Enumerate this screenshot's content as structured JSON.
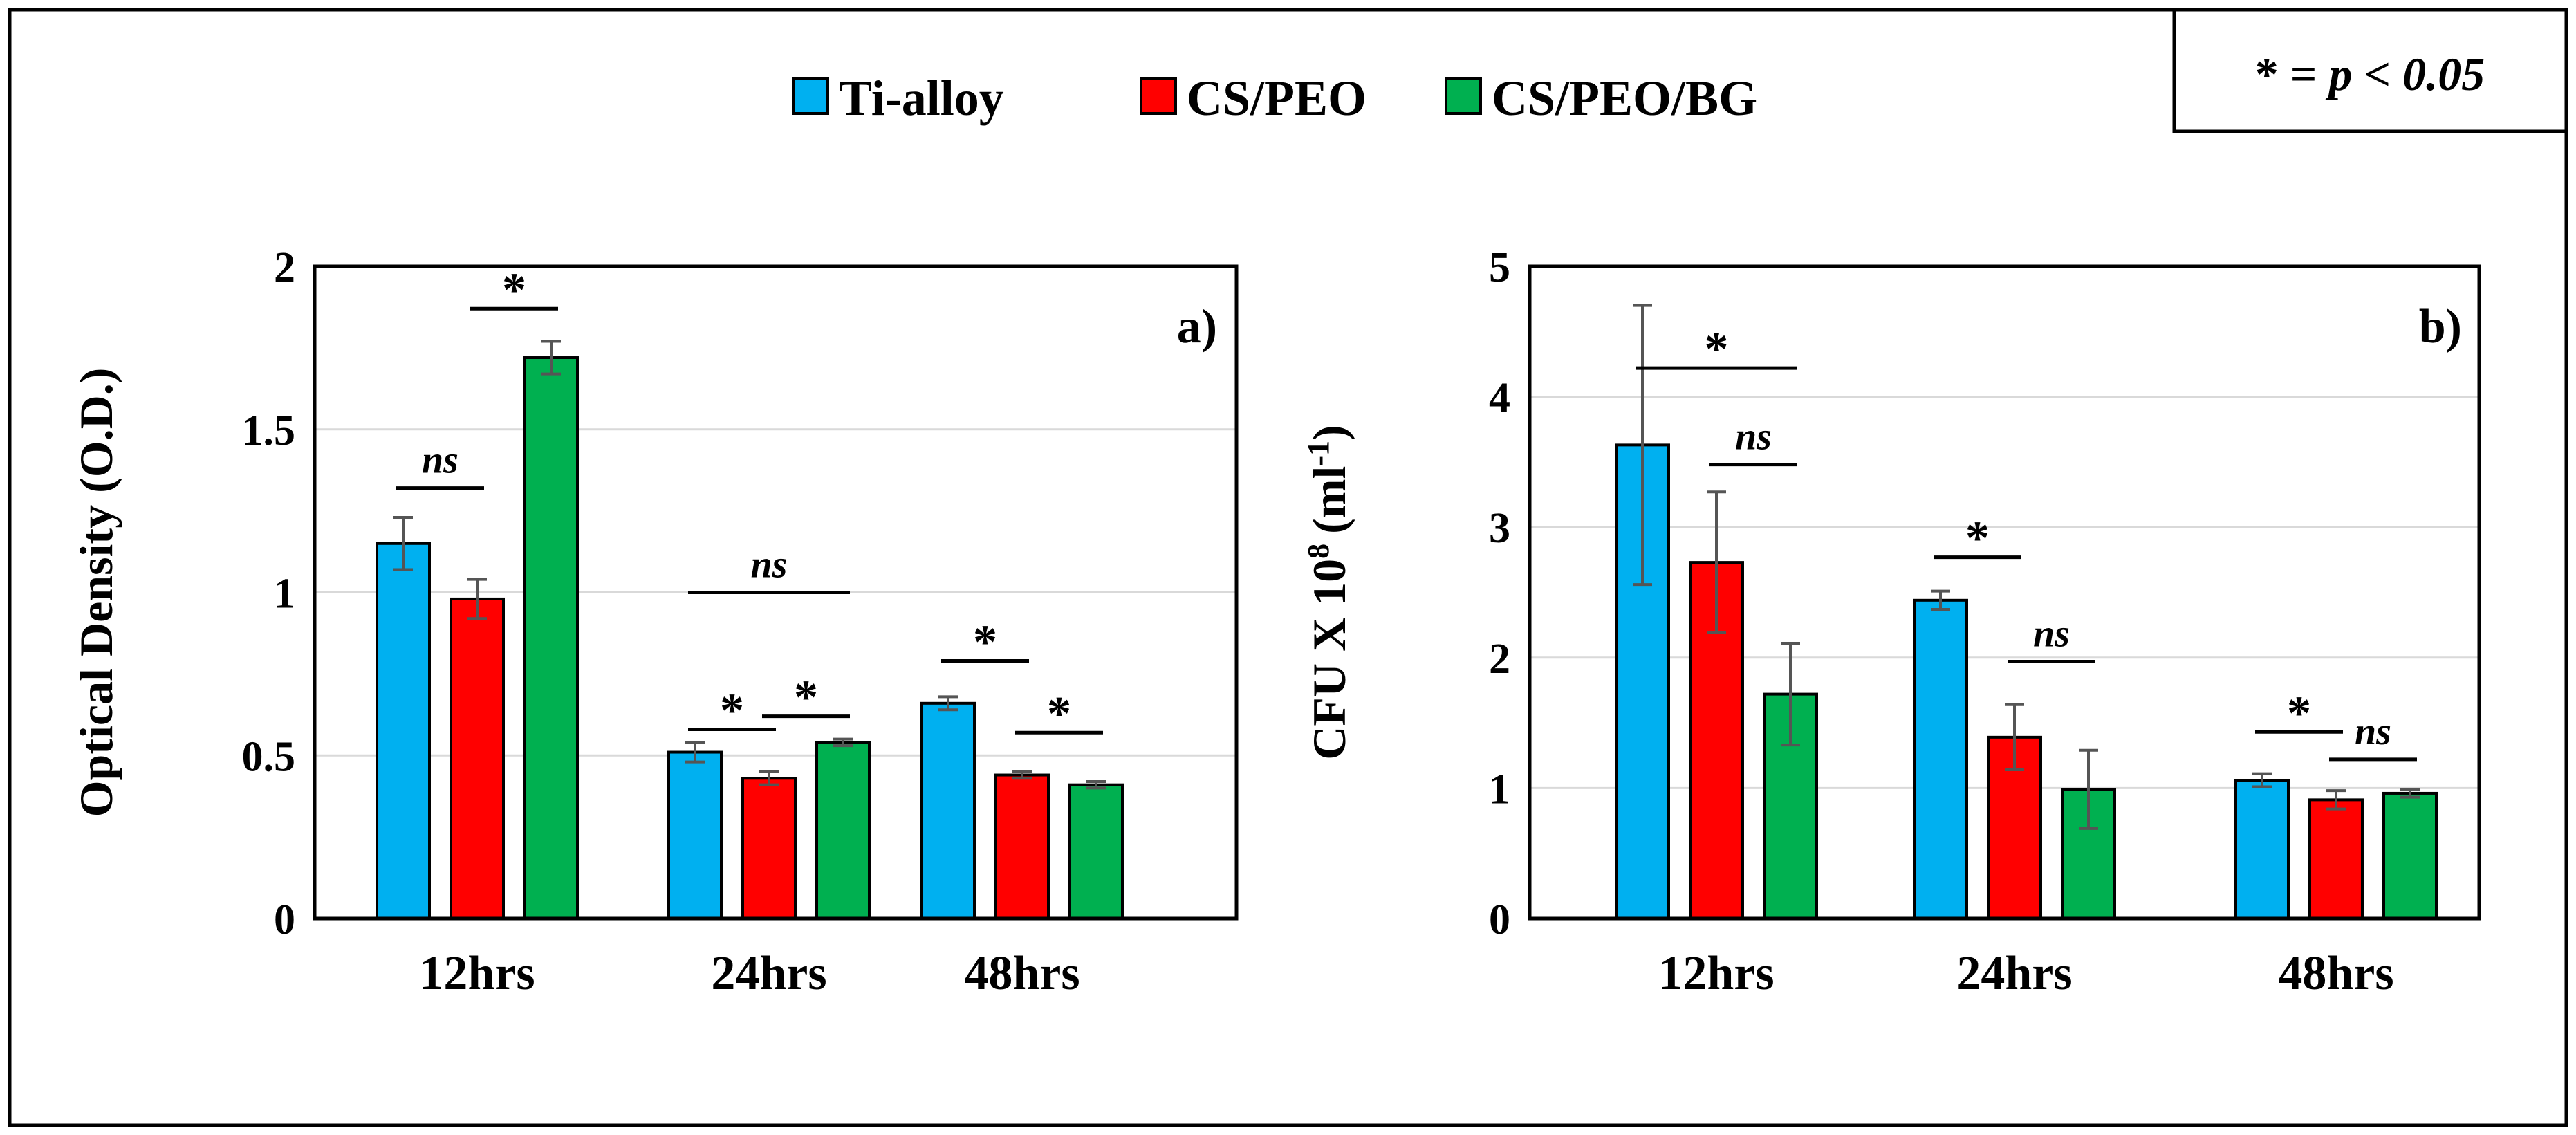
{
  "legend": {
    "items": [
      {
        "label": "Ti-alloy",
        "color": "#00B0F0"
      },
      {
        "label": "CS/PEO",
        "color": "#FF0000"
      },
      {
        "label": "CS/PEO/BG",
        "color": "#00B050"
      }
    ]
  },
  "significance_note": {
    "symbol": "* =",
    "text": "p < 0.05"
  },
  "chart_data": [
    {
      "type": "bar",
      "panel_label": "a)",
      "ylabel": "Optical Density (O.D.)",
      "categories": [
        "12hrs",
        "24hrs",
        "48hrs"
      ],
      "ylim": [
        0,
        2
      ],
      "yticks": [
        0,
        0.5,
        1,
        1.5,
        2
      ],
      "ytick_labels": [
        "0",
        "0.5",
        "1",
        "1.5",
        "2"
      ],
      "grid": true,
      "series": [
        {
          "name": "Ti-alloy",
          "values": [
            1.15,
            0.51,
            0.66
          ],
          "errors": [
            0.08,
            0.03,
            0.02
          ]
        },
        {
          "name": "CS/PEO",
          "values": [
            0.98,
            0.43,
            0.44
          ],
          "errors": [
            0.06,
            0.02,
            0.01
          ]
        },
        {
          "name": "CS/PEO/BG",
          "values": [
            1.72,
            0.54,
            0.41
          ],
          "errors": [
            0.05,
            0.01,
            0.01
          ]
        }
      ],
      "annotations": [
        {
          "text": "ns",
          "category": 0,
          "from": 0,
          "to": 1,
          "y": 1.32
        },
        {
          "text": "*",
          "category": 0,
          "from": 1,
          "to": 2,
          "y": 1.87
        },
        {
          "text": "ns",
          "category": 1,
          "from": 0,
          "to": 2,
          "y": 1.0
        },
        {
          "text": "*",
          "category": 1,
          "from": 0,
          "to": 1,
          "y": 0.58
        },
        {
          "text": "*",
          "category": 1,
          "from": 1,
          "to": 2,
          "y": 0.62
        },
        {
          "text": "*",
          "category": 2,
          "from": 0,
          "to": 1,
          "y": 0.79
        },
        {
          "text": "*",
          "category": 2,
          "from": 1,
          "to": 2,
          "y": 0.57
        }
      ]
    },
    {
      "type": "bar",
      "panel_label": "b)",
      "ylabel_main": "CFU X 10",
      "ylabel_sup": "8",
      "ylabel_unit": "(ml",
      "ylabel_unit_sup": "-1",
      "ylabel_close": ")",
      "categories": [
        "12hrs",
        "24hrs",
        "48hrs"
      ],
      "ylim": [
        0,
        5
      ],
      "yticks": [
        0,
        1,
        2,
        3,
        4,
        5
      ],
      "ytick_labels": [
        "0",
        "1",
        "2",
        "3",
        "4",
        "5"
      ],
      "grid": true,
      "series": [
        {
          "name": "Ti-alloy",
          "values": [
            3.63,
            2.44,
            1.06
          ],
          "errors": [
            1.07,
            0.07,
            0.05
          ]
        },
        {
          "name": "CS/PEO",
          "values": [
            2.73,
            1.39,
            0.91
          ],
          "errors": [
            0.54,
            0.25,
            0.07
          ]
        },
        {
          "name": "CS/PEO/BG",
          "values": [
            1.72,
            0.99,
            0.96
          ],
          "errors": [
            0.39,
            0.3,
            0.03
          ]
        }
      ],
      "annotations": [
        {
          "text": "*",
          "category": 0,
          "from": 0,
          "to": 2,
          "y": 4.22
        },
        {
          "text": "ns",
          "category": 0,
          "from": 1,
          "to": 2,
          "y": 3.48
        },
        {
          "text": "*",
          "category": 1,
          "from": 0,
          "to": 1,
          "y": 2.77
        },
        {
          "text": "ns",
          "category": 1,
          "from": 1,
          "to": 2,
          "y": 1.97
        },
        {
          "text": "*",
          "category": 2,
          "from": 0,
          "to": 1,
          "y": 1.43
        },
        {
          "text": "ns",
          "category": 2,
          "from": 1,
          "to": 2,
          "y": 1.22
        }
      ]
    }
  ]
}
